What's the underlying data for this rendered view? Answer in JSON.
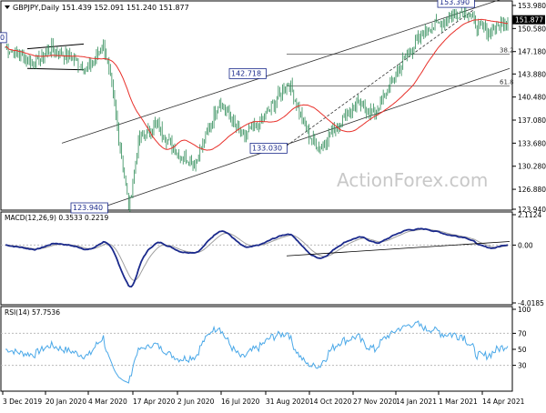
{
  "header": {
    "symbol": "GBPJPY",
    "timeframe": "Daily",
    "ohlc": "151.439 152.091 151.240 151.877"
  },
  "watermark": "ActionForex.com",
  "chart_data": [
    {
      "type": "candlestick",
      "name": "price",
      "x_dates": [
        "3 Dec 2019",
        "20 Jan 2020",
        "4 Mar 2020",
        "17 Apr 2020",
        "2 Jun 2020",
        "16 Jul 2020",
        "31 Aug 2020",
        "14 Oct 2020",
        "27 Nov 2020",
        "14 Jan 2021",
        "1 Mar 2021",
        "14 Apr 2021"
      ],
      "y_ticks": [
        123.94,
        126.88,
        130.28,
        133.68,
        137.08,
        140.48,
        143.88,
        147.18,
        150.58,
        153.98
      ],
      "ylim": [
        123.94,
        153.98
      ],
      "last_price": "151.877",
      "labels": {
        "low_mar2020": "123.940",
        "high_jul2020": "142.718",
        "low_sep2020": "133.030",
        "high_mar2021": "153.390",
        "fib_382": "38.2",
        "fib_618": "61.8",
        "left_edge_label": "0"
      },
      "key_points": [
        {
          "date": "Dec 2019",
          "value": 147.9
        },
        {
          "date": "Mar 2020",
          "value": 123.94
        },
        {
          "date": "Jul 2020",
          "value": 142.718
        },
        {
          "date": "Sep 2020",
          "value": 133.03
        },
        {
          "date": "Mar 2021",
          "value": 153.39
        },
        {
          "date": "Apr 2021",
          "value": 151.877
        }
      ],
      "moving_average_color": "#e8302a",
      "candle_color": "#2e8b57"
    },
    {
      "type": "line",
      "name": "macd",
      "label": "MACD(12,26,9) 0.3533 0.2219",
      "y_ticks": [
        "2.1124",
        "0.00",
        "-4.0185"
      ],
      "ylim": [
        -4.0185,
        2.1124
      ],
      "macd_color": "#1b2a8c",
      "signal_color": "#a0a0a0"
    },
    {
      "type": "line",
      "name": "rsi",
      "label": "RSI(14) 57.7536",
      "y_ticks": [
        "100",
        "70",
        "50",
        "30",
        "0"
      ],
      "ylim": [
        0,
        100
      ],
      "line_color": "#4aa8e8"
    }
  ]
}
